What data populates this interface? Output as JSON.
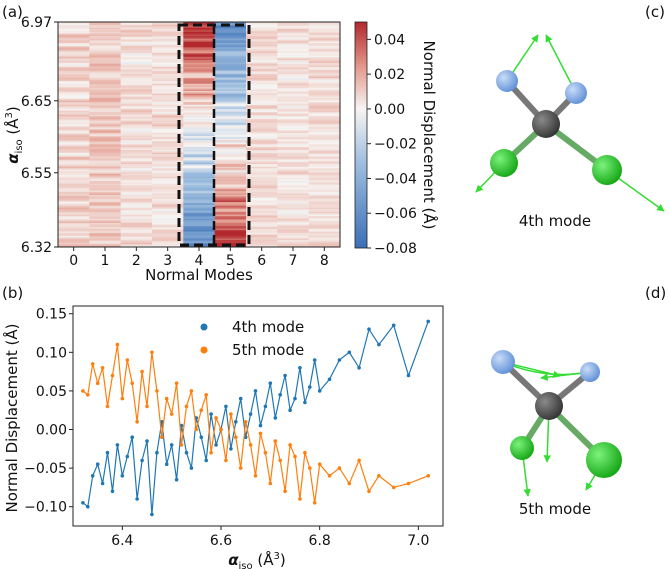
{
  "panels": {
    "a": "(a)",
    "b": "(b)",
    "c": "(c)",
    "d": "(d)"
  },
  "colors": {
    "blue": "#1f77b4",
    "orange": "#ff7f0e",
    "atom_carbon": "#555555",
    "atom_fluorine": "#8cb3ee",
    "atom_chlorine": "#22cc22",
    "arrow": "#33dd33"
  },
  "chart_data": [
    {
      "type": "heatmap",
      "id": "panel-a",
      "title": "",
      "xlabel": "Normal Modes",
      "ylabel": "αiso (Å3)",
      "ylabel_main": "α",
      "ylabel_sub": "iso",
      "ylabel_unit": " (Å",
      "ylabel_sup": "3",
      "ylabel_close": ")",
      "x_ticks": [
        "0",
        "1",
        "2",
        "3",
        "4",
        "5",
        "6",
        "7",
        "8"
      ],
      "y_ticks": [
        "6.97",
        "6.65",
        "6.55",
        "6.32"
      ],
      "colorbar_label": "Normal Displacement (Å)",
      "colorbar_ticks": [
        "0.04",
        "0.02",
        "0.00",
        "−0.02",
        "−0.04",
        "−0.06",
        "−0.08"
      ],
      "vmin": -0.08,
      "vmax": 0.05,
      "highlight_modes": [
        4,
        5
      ],
      "mode_means": [
        0.008,
        0.012,
        0.006,
        0.005,
        0.012,
        0.004,
        0.006,
        0.005,
        0.006
      ],
      "mode_noise": [
        0.012,
        0.012,
        0.012,
        0.012,
        0.022,
        0.022,
        0.011,
        0.011,
        0.011
      ]
    },
    {
      "type": "line",
      "id": "panel-b",
      "xlabel_main": "α",
      "xlabel_sub": "iso",
      "xlabel_unit": " (Å",
      "xlabel_sup": "3",
      "xlabel_close": ")",
      "ylabel": "Normal Displacement (Å)",
      "xlim": [
        6.3,
        7.05
      ],
      "ylim": [
        -0.125,
        0.16
      ],
      "x_ticks": [
        "6.4",
        "6.6",
        "6.8",
        "7.0"
      ],
      "y_ticks": [
        "0.15",
        "0.10",
        "0.05",
        "0.00",
        "−0.05",
        "−0.10"
      ],
      "series": [
        {
          "name": "4th mode",
          "color": "#1f77b4",
          "x": [
            6.32,
            6.33,
            6.34,
            6.35,
            6.36,
            6.37,
            6.38,
            6.39,
            6.4,
            6.41,
            6.42,
            6.43,
            6.44,
            6.45,
            6.46,
            6.47,
            6.48,
            6.49,
            6.5,
            6.51,
            6.52,
            6.53,
            6.54,
            6.55,
            6.56,
            6.57,
            6.58,
            6.59,
            6.6,
            6.61,
            6.62,
            6.63,
            6.64,
            6.65,
            6.66,
            6.67,
            6.68,
            6.69,
            6.7,
            6.71,
            6.72,
            6.73,
            6.74,
            6.75,
            6.76,
            6.77,
            6.78,
            6.79,
            6.8,
            6.82,
            6.84,
            6.86,
            6.88,
            6.9,
            6.92,
            6.95,
            6.98,
            7.02
          ],
          "y": [
            -0.095,
            -0.1,
            -0.06,
            -0.045,
            -0.07,
            -0.03,
            -0.08,
            -0.02,
            -0.06,
            -0.035,
            -0.01,
            -0.09,
            -0.04,
            -0.015,
            -0.11,
            -0.03,
            0.01,
            -0.045,
            -0.02,
            -0.065,
            0.005,
            -0.03,
            -0.05,
            0.015,
            -0.01,
            -0.04,
            0.02,
            -0.02,
            0.0,
            0.03,
            -0.025,
            0.01,
            0.04,
            -0.01,
            0.02,
            0.05,
            0.005,
            0.03,
            0.06,
            0.015,
            0.045,
            0.07,
            0.025,
            0.04,
            0.08,
            0.035,
            0.055,
            0.09,
            0.05,
            0.065,
            0.09,
            0.1,
            0.08,
            0.13,
            0.11,
            0.135,
            0.07,
            0.14
          ]
        },
        {
          "name": "5th mode",
          "color": "#ff7f0e",
          "x": [
            6.32,
            6.33,
            6.34,
            6.35,
            6.36,
            6.37,
            6.38,
            6.39,
            6.4,
            6.41,
            6.42,
            6.43,
            6.44,
            6.45,
            6.46,
            6.47,
            6.48,
            6.49,
            6.5,
            6.51,
            6.52,
            6.53,
            6.54,
            6.55,
            6.56,
            6.57,
            6.58,
            6.59,
            6.6,
            6.61,
            6.62,
            6.63,
            6.64,
            6.65,
            6.66,
            6.67,
            6.68,
            6.69,
            6.7,
            6.71,
            6.72,
            6.73,
            6.74,
            6.75,
            6.76,
            6.77,
            6.78,
            6.79,
            6.8,
            6.82,
            6.84,
            6.86,
            6.88,
            6.9,
            6.92,
            6.95,
            6.98,
            7.02
          ],
          "y": [
            0.05,
            0.045,
            0.085,
            0.06,
            0.08,
            0.03,
            0.07,
            0.11,
            0.04,
            0.09,
            0.06,
            0.01,
            0.075,
            0.03,
            0.1,
            0.05,
            -0.01,
            0.04,
            0.02,
            0.06,
            -0.02,
            0.03,
            0.05,
            0.0,
            0.025,
            0.045,
            -0.03,
            0.015,
            0.0,
            -0.04,
            0.02,
            -0.01,
            -0.05,
            0.01,
            -0.02,
            -0.06,
            -0.005,
            -0.03,
            -0.07,
            -0.015,
            -0.04,
            -0.08,
            -0.02,
            -0.035,
            -0.09,
            -0.03,
            -0.05,
            -0.095,
            -0.045,
            -0.06,
            -0.05,
            -0.07,
            -0.04,
            -0.08,
            -0.06,
            -0.075,
            -0.07,
            -0.06
          ]
        }
      ]
    }
  ],
  "molecules": {
    "c": {
      "caption": "4th mode"
    },
    "d": {
      "caption": "5th mode"
    }
  }
}
